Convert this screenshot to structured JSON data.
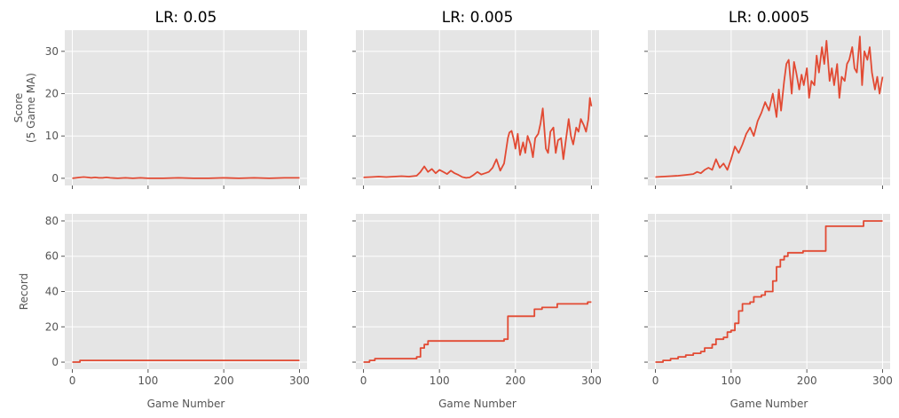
{
  "colors": {
    "series": "#e24a33",
    "panel_bg": "#e5e5e5",
    "grid": "#ffffff"
  },
  "chart_data": [
    {
      "type": "line",
      "title": "LR: 0.05",
      "xlabel": "",
      "ylabel": "Score\n(5 Game MA)",
      "xlim": [
        -10,
        310
      ],
      "ylim": [
        -1.7,
        35
      ],
      "xticks": [
        0,
        100,
        200,
        300
      ],
      "yticks": [
        0,
        10,
        20,
        30
      ],
      "show_xticklabels": false,
      "show_yticklabels": true,
      "grid": true,
      "series": [
        {
          "x": [
            0,
            5,
            10,
            15,
            20,
            25,
            30,
            35,
            40,
            45,
            50,
            60,
            70,
            80,
            90,
            100,
            120,
            140,
            160,
            180,
            200,
            220,
            240,
            260,
            280,
            300
          ],
          "y": [
            0,
            0.1,
            0.2,
            0.3,
            0.2,
            0.1,
            0.2,
            0.1,
            0.1,
            0.2,
            0.1,
            0,
            0.1,
            0,
            0.1,
            0,
            0,
            0.1,
            0,
            0,
            0.1,
            0,
            0.1,
            0,
            0.1,
            0.1
          ]
        }
      ]
    },
    {
      "type": "line",
      "title": "LR: 0.005",
      "xlabel": "",
      "ylabel": "",
      "xlim": [
        -10,
        310
      ],
      "ylim": [
        -1.7,
        35
      ],
      "xticks": [
        0,
        100,
        200,
        300
      ],
      "yticks": [
        0,
        10,
        20,
        30
      ],
      "show_xticklabels": false,
      "show_yticklabels": false,
      "grid": true,
      "series": [
        {
          "x": [
            0,
            10,
            20,
            30,
            40,
            50,
            60,
            70,
            75,
            80,
            85,
            90,
            95,
            100,
            105,
            110,
            115,
            120,
            125,
            130,
            135,
            140,
            145,
            150,
            155,
            160,
            165,
            170,
            175,
            180,
            185,
            190,
            192,
            195,
            198,
            200,
            203,
            206,
            210,
            213,
            216,
            220,
            223,
            226,
            230,
            233,
            236,
            240,
            243,
            246,
            250,
            253,
            256,
            260,
            263,
            266,
            270,
            273,
            276,
            280,
            283,
            286,
            290,
            293,
            296,
            298,
            300
          ],
          "y": [
            0.2,
            0.3,
            0.4,
            0.3,
            0.4,
            0.5,
            0.4,
            0.6,
            1.5,
            2.8,
            1.5,
            2.2,
            1.2,
            2.0,
            1.5,
            1.0,
            1.8,
            1.2,
            0.8,
            0.3,
            0.1,
            0.2,
            0.8,
            1.5,
            0.9,
            1.2,
            1.5,
            2.5,
            4.5,
            1.8,
            3.5,
            9.5,
            10.8,
            11.2,
            9.0,
            7.0,
            10.5,
            5.5,
            8.5,
            6.0,
            10.0,
            8.0,
            5.0,
            9.5,
            10.5,
            13.0,
            16.5,
            7.0,
            6.0,
            11.0,
            12.0,
            6.0,
            9.0,
            9.5,
            4.5,
            8.5,
            14.0,
            10.0,
            8.0,
            12.0,
            11.0,
            14.0,
            12.5,
            11.0,
            14.0,
            19.0,
            17.0
          ]
        }
      ]
    },
    {
      "type": "line",
      "title": "LR: 0.0005",
      "xlabel": "",
      "ylabel": "",
      "xlim": [
        -10,
        310
      ],
      "ylim": [
        -1.7,
        35
      ],
      "xticks": [
        0,
        100,
        200,
        300
      ],
      "yticks": [
        0,
        10,
        20,
        30
      ],
      "show_xticklabels": false,
      "show_yticklabels": false,
      "grid": true,
      "series": [
        {
          "x": [
            0,
            10,
            20,
            30,
            40,
            50,
            55,
            60,
            65,
            70,
            75,
            80,
            85,
            90,
            95,
            100,
            105,
            110,
            115,
            120,
            125,
            130,
            135,
            140,
            145,
            150,
            155,
            160,
            163,
            166,
            170,
            173,
            176,
            180,
            183,
            186,
            190,
            193,
            196,
            200,
            203,
            206,
            210,
            213,
            216,
            220,
            223,
            226,
            230,
            233,
            236,
            240,
            243,
            246,
            250,
            253,
            256,
            260,
            263,
            266,
            270,
            273,
            276,
            280,
            283,
            286,
            290,
            293,
            296,
            300
          ],
          "y": [
            0.3,
            0.4,
            0.5,
            0.6,
            0.8,
            1.0,
            1.5,
            1.2,
            2.0,
            2.5,
            2.0,
            4.5,
            2.5,
            3.5,
            2.0,
            4.5,
            7.5,
            6.0,
            8.0,
            10.5,
            12.0,
            10.0,
            13.5,
            15.5,
            18.0,
            16.0,
            20.0,
            14.5,
            21.0,
            16.0,
            23.0,
            27.0,
            28.0,
            20.0,
            27.5,
            25.0,
            21.0,
            24.5,
            22.0,
            26.0,
            19.0,
            23.0,
            22.0,
            29.0,
            25.0,
            31.0,
            27.0,
            32.5,
            23.0,
            26.0,
            22.0,
            27.0,
            19.0,
            24.0,
            23.0,
            27.0,
            28.0,
            31.0,
            26.0,
            25.0,
            33.5,
            22.0,
            30.0,
            28.0,
            31.0,
            25.0,
            21.0,
            24.0,
            20.0,
            24.0
          ]
        }
      ]
    },
    {
      "type": "line",
      "title": "",
      "xlabel": "Game Number",
      "ylabel": "Record",
      "xlim": [
        -10,
        310
      ],
      "ylim": [
        -4,
        84
      ],
      "xticks": [
        0,
        100,
        200,
        300
      ],
      "yticks": [
        0,
        20,
        40,
        60,
        80
      ],
      "show_xticklabels": true,
      "show_yticklabels": true,
      "grid": true,
      "series": [
        {
          "x": [
            0,
            10,
            10,
            300
          ],
          "y": [
            0,
            0,
            1,
            1
          ]
        }
      ]
    },
    {
      "type": "line",
      "title": "",
      "xlabel": "Game Number",
      "ylabel": "",
      "xlim": [
        -10,
        310
      ],
      "ylim": [
        -4,
        84
      ],
      "xticks": [
        0,
        100,
        200,
        300
      ],
      "yticks": [
        0,
        20,
        40,
        60,
        80
      ],
      "show_xticklabels": true,
      "show_yticklabels": false,
      "grid": true,
      "series": [
        {
          "x": [
            0,
            8,
            8,
            15,
            15,
            70,
            70,
            75,
            75,
            80,
            80,
            85,
            85,
            185,
            185,
            190,
            190,
            225,
            225,
            235,
            235,
            255,
            255,
            295,
            295,
            300
          ],
          "y": [
            0,
            0,
            1,
            1,
            2,
            2,
            3,
            3,
            8,
            8,
            10,
            10,
            12,
            12,
            13,
            13,
            26,
            26,
            30,
            30,
            31,
            31,
            33,
            33,
            34,
            34
          ]
        }
      ]
    },
    {
      "type": "line",
      "title": "",
      "xlabel": "Game Number",
      "ylabel": "",
      "xlim": [
        -10,
        310
      ],
      "ylim": [
        -4,
        84
      ],
      "xticks": [
        0,
        100,
        200,
        300
      ],
      "yticks": [
        0,
        20,
        40,
        60,
        80
      ],
      "show_xticklabels": true,
      "show_yticklabels": false,
      "grid": true,
      "series": [
        {
          "x": [
            0,
            10,
            10,
            20,
            20,
            30,
            30,
            40,
            40,
            50,
            50,
            60,
            60,
            65,
            65,
            75,
            75,
            80,
            80,
            90,
            90,
            95,
            95,
            100,
            100,
            105,
            105,
            110,
            110,
            115,
            115,
            125,
            125,
            130,
            130,
            140,
            140,
            145,
            145,
            155,
            155,
            160,
            160,
            165,
            165,
            170,
            170,
            175,
            175,
            195,
            195,
            225,
            225,
            275,
            275,
            300
          ],
          "y": [
            0,
            0,
            1,
            1,
            2,
            2,
            3,
            3,
            4,
            4,
            5,
            5,
            6,
            6,
            8,
            8,
            10,
            10,
            13,
            13,
            14,
            14,
            17,
            17,
            18,
            18,
            22,
            22,
            29,
            29,
            33,
            33,
            34,
            34,
            37,
            37,
            38,
            38,
            40,
            40,
            46,
            46,
            54,
            54,
            58,
            58,
            60,
            60,
            62,
            62,
            63,
            63,
            77,
            77,
            80,
            80
          ]
        }
      ]
    }
  ]
}
